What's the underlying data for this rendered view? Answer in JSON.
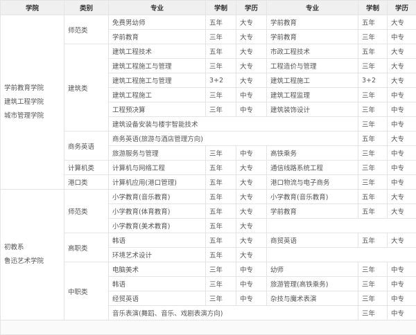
{
  "header": [
    "学院",
    "类别",
    "专业",
    "学制",
    "学历",
    "专业",
    "学制",
    "学历"
  ],
  "groups": [
    {
      "college": [
        "学前教育学院",
        "建筑工程学院",
        "城市管理学院"
      ],
      "categories": [
        {
          "name": "师范类",
          "rows": [
            {
              "left": [
                "免费男幼师",
                "五年",
                "大专"
              ],
              "right": [
                "学前教育",
                "五年",
                "大专"
              ]
            },
            {
              "left": [
                "学前教育",
                "三年",
                "大专"
              ],
              "right": [
                "学前教育",
                "三年",
                "中专"
              ]
            }
          ]
        },
        {
          "name": "建筑类",
          "rows": [
            {
              "left": [
                "建筑工程技术",
                "五年",
                "大专"
              ],
              "right": [
                "市政工程技术",
                "五年",
                "大专"
              ]
            },
            {
              "left": [
                "建筑工程施工与管理",
                "三年",
                "大专"
              ],
              "right": [
                "工程造价与管理",
                "三年",
                "大专"
              ]
            },
            {
              "left": [
                "建筑工程施工与管理",
                "3+2",
                "大专"
              ],
              "right": [
                "建筑工程施工",
                "3+2",
                "大专"
              ]
            },
            {
              "left": [
                "建筑工程施工",
                "三年",
                "中专"
              ],
              "right": [
                "建筑工程监理",
                "三年",
                "中专"
              ]
            },
            {
              "left": [
                "工程预决算",
                "三年",
                "中专"
              ],
              "right": [
                "建筑装饰设计",
                "三年",
                "中专"
              ]
            },
            {
              "full": [
                "建筑设备安装与楼宇智能技术",
                "三年",
                "中专"
              ]
            }
          ]
        },
        {
          "name": "商务英语",
          "rows": [
            {
              "full": [
                "商务英语(旅游与酒店管理方向)",
                "五年",
                "大专"
              ]
            },
            {
              "left": [
                "旅游服务与管理",
                "三年",
                "中专"
              ],
              "right": [
                "高铁乘务",
                "三年",
                "中专"
              ]
            }
          ]
        },
        {
          "name": "计算机类",
          "rows": [
            {
              "left": [
                "计算机与网络工程",
                "五年",
                "大专"
              ],
              "right": [
                "通信线路系统工程",
                "三年",
                "中专"
              ]
            }
          ]
        },
        {
          "name": "港口类",
          "rows": [
            {
              "left": [
                "计算机应用(港口管理)",
                "五年",
                "大专"
              ],
              "right": [
                "港口物流与电子商务",
                "三年",
                "中专"
              ]
            }
          ]
        }
      ]
    },
    {
      "college": [
        "初教系",
        "鲁迅艺术学院"
      ],
      "categories": [
        {
          "name": "师范类",
          "rows": [
            {
              "left": [
                "小学教育(音乐教育)",
                "五年",
                "大专"
              ],
              "right": [
                "小学教育(音乐教育)",
                "五年",
                "大专"
              ]
            },
            {
              "left": [
                "小学教育(体育教育)",
                "五年",
                "大专"
              ],
              "right": [
                "学前教育",
                "五年",
                "大专"
              ]
            },
            {
              "left": [
                "小学教育(美术教育)",
                "五年",
                "大专"
              ]
            }
          ]
        },
        {
          "name": "高职类",
          "rows": [
            {
              "left": [
                "韩语",
                "五年",
                "大专"
              ],
              "right": [
                "商贸英语",
                "五年",
                "大专"
              ]
            },
            {
              "left": [
                "环境艺术设计",
                "五年",
                "大专"
              ]
            }
          ]
        },
        {
          "name": "中职类",
          "rows": [
            {
              "left": [
                "电脑美术",
                "三年",
                "中专"
              ],
              "right": [
                "幼师",
                "三年",
                "中专"
              ]
            },
            {
              "left": [
                "韩语",
                "三年",
                "中专"
              ],
              "right": [
                "旅游管理(高铁乘务)",
                "三年",
                "中专"
              ]
            },
            {
              "left": [
                "经贸英语",
                "三年",
                "中专"
              ],
              "right": [
                "杂技与魔术表演",
                "三年",
                "中专"
              ]
            },
            {
              "full": [
                "音乐表演(舞蹈、音乐、戏剧表演方向)",
                "三年",
                "中专"
              ]
            }
          ]
        }
      ]
    }
  ]
}
